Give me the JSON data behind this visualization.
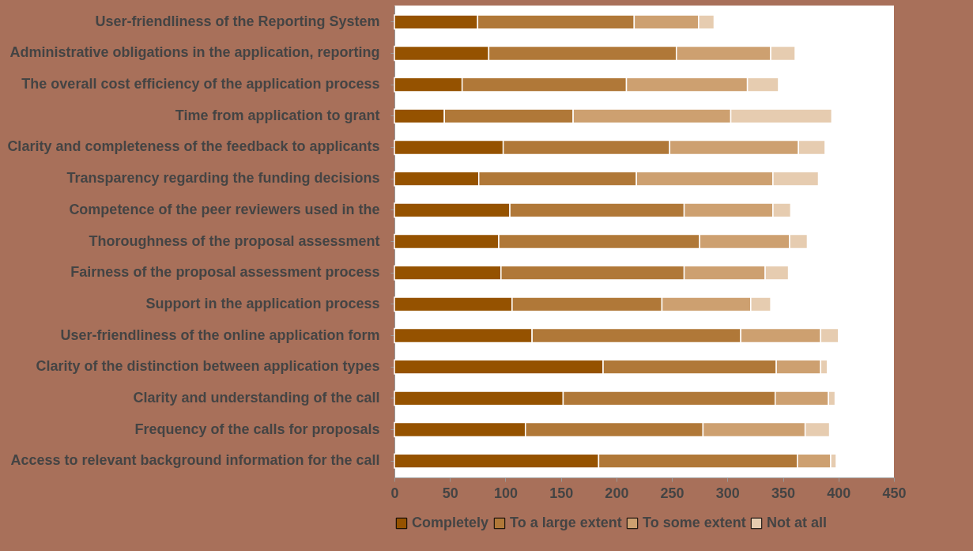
{
  "chart_data": {
    "type": "bar",
    "orientation": "horizontal",
    "stacked": true,
    "categories": [
      "User-friendliness of the Reporting System",
      "Administrative obligations in the application, reporting",
      "The overall cost efficiency of the application process",
      "Time from application to grant",
      "Clarity and completeness of the feedback to applicants",
      "Transparency regarding the funding decisions",
      "Competence of the peer reviewers used in the",
      "Thoroughness of the proposal assessment",
      "Fairness of the proposal assessment process",
      "Support in the application process",
      "User-friendliness of the online application form",
      "Clarity of the distinction between application types",
      "Clarity and understanding of the call",
      "Frequency of the calls for proposals",
      "Access to relevant background information for the call"
    ],
    "series": [
      {
        "name": "Completely",
        "color": "#955200",
        "values": [
          75,
          85,
          61,
          45,
          98,
          76,
          104,
          94,
          96,
          106,
          124,
          188,
          152,
          118,
          184
        ]
      },
      {
        "name": "To a large extent",
        "color": "#b07838",
        "values": [
          141,
          169,
          148,
          116,
          150,
          142,
          157,
          181,
          165,
          135,
          188,
          156,
          191,
          160,
          179
        ]
      },
      {
        "name": "To some extent",
        "color": "#cda070",
        "values": [
          58,
          85,
          109,
          142,
          116,
          123,
          80,
          81,
          73,
          80,
          72,
          40,
          48,
          92,
          30
        ]
      },
      {
        "name": "Not at all",
        "color": "#e6ccb0",
        "values": [
          14,
          22,
          28,
          91,
          24,
          41,
          16,
          16,
          21,
          18,
          16,
          6,
          6,
          22,
          5
        ]
      }
    ],
    "xlim": [
      0,
      450
    ],
    "xticks": [
      0,
      50,
      100,
      150,
      200,
      250,
      300,
      350,
      400,
      450
    ],
    "grid": false,
    "legend": "bottom"
  }
}
